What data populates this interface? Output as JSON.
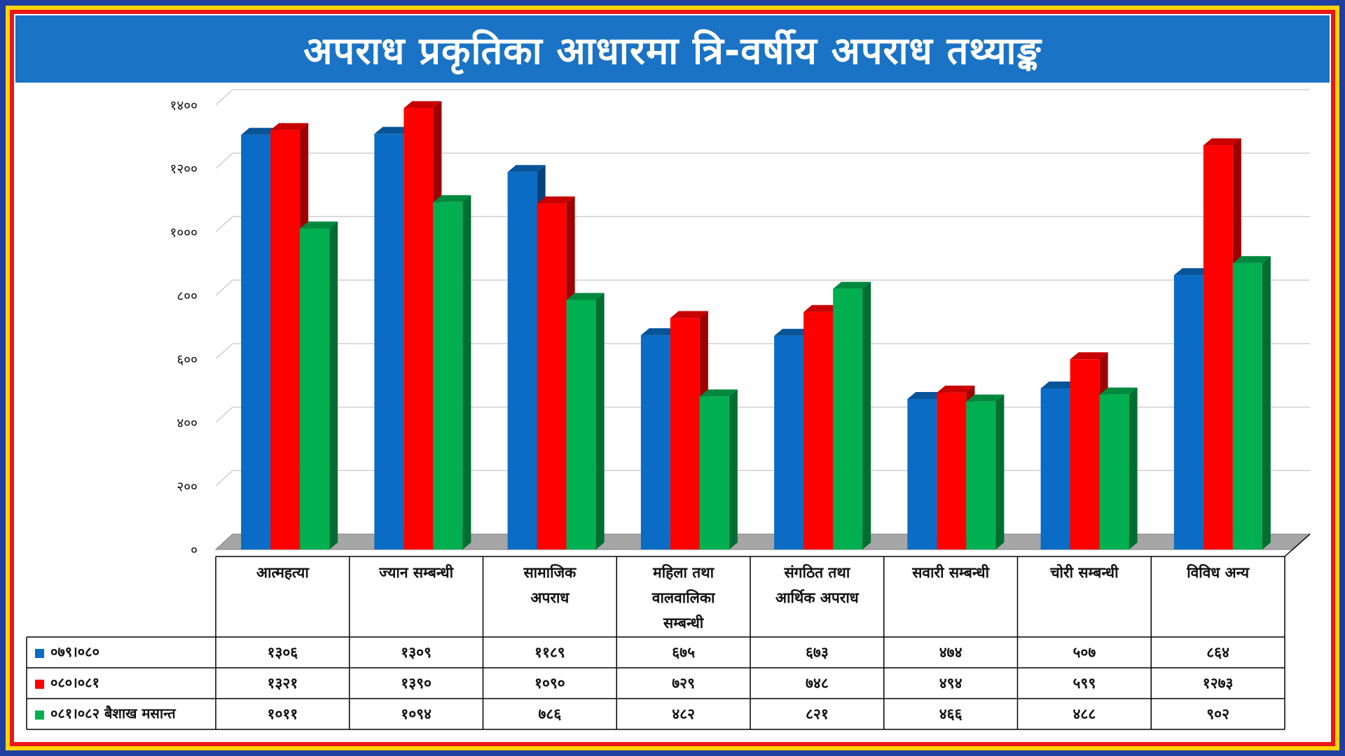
{
  "title": "अपराध प्रकृतिका आधारमा त्रि-वर्षीय अपराध तथ्याङ्क",
  "chart_data": {
    "type": "bar",
    "categories": [
      [
        "आत्महत्या"
      ],
      [
        "ज्यान सम्बन्धी"
      ],
      [
        "सामाजिक",
        "अपराध"
      ],
      [
        "महिला तथा",
        "वालवालिका",
        "सम्बन्धी"
      ],
      [
        "संगठित तथा",
        "आर्थिक अपराध"
      ],
      [
        "सवारी सम्बन्धी"
      ],
      [
        "चोरी सम्बन्धी"
      ],
      [
        "विविध अन्य"
      ]
    ],
    "y_ticks": [
      "०",
      "२००",
      "४००",
      "६००",
      "८००",
      "१०००",
      "१२००",
      "१४००"
    ],
    "ylim": [
      0,
      1400
    ],
    "grid": true,
    "legend": "data-table",
    "series": [
      {
        "name": "०७९।०८०",
        "color": "#0a6cc4",
        "values": [
          1306,
          1309,
          1189,
          675,
          673,
          474,
          507,
          864
        ],
        "labels": [
          "१३०६",
          "१३०९",
          "११८९",
          "६७५",
          "६७३",
          "४७४",
          "५०७",
          "८६४"
        ]
      },
      {
        "name": "०८०।०८१",
        "color": "#ff0000",
        "values": [
          1321,
          1390,
          1090,
          729,
          748,
          494,
          599,
          1273
        ],
        "labels": [
          "१३२१",
          "१३९०",
          "१०९०",
          "७२९",
          "७४८",
          "४९४",
          "५९९",
          "१२७३"
        ]
      },
      {
        "name": "०८१।०८२ बैशाख मसान्त",
        "color": "#00b050",
        "values": [
          1011,
          1094,
          786,
          482,
          821,
          466,
          488,
          902
        ],
        "labels": [
          "१०११",
          "१०९४",
          "७८६",
          "४८२",
          "८२१",
          "४६६",
          "४८८",
          "९०२"
        ]
      }
    ]
  }
}
